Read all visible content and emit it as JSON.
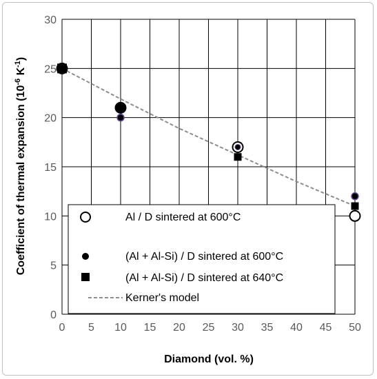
{
  "chart_data": {
    "type": "scatter",
    "xlabel": "Diamond (vol. %)",
    "ylabel": {
      "main": "Coefficient of thermal expansion (10",
      "sup1": "-6",
      "mid": " K",
      "sup2": "-1",
      "end": ")"
    },
    "xlim": [
      0,
      50
    ],
    "ylim": [
      0,
      30
    ],
    "xticks": [
      0,
      5,
      10,
      15,
      20,
      25,
      30,
      35,
      40,
      45,
      50
    ],
    "yticks": [
      0,
      5,
      10,
      15,
      20,
      25,
      30
    ],
    "grid": true,
    "legend_position": "bottom-center",
    "series": [
      {
        "name": "Al / D sintered at 600°C",
        "marker": "open-circle",
        "color": "#000000",
        "points": [
          {
            "x": 0,
            "y": 25
          },
          {
            "x": 10,
            "y": 21
          },
          {
            "x": 30,
            "y": 17
          },
          {
            "x": 50,
            "y": 10
          }
        ]
      },
      {
        "name": "(Al + Al-Si) / D sintered at 600°C",
        "marker": "filled-circle",
        "color": "#000000",
        "points": [
          {
            "x": 0,
            "y": 25
          },
          {
            "x": 10,
            "y": 20
          },
          {
            "x": 30,
            "y": 17
          },
          {
            "x": 50,
            "y": 12
          }
        ]
      },
      {
        "name": "(Al + Al-Si) / D sintered at 640°C",
        "marker": "filled-square",
        "color": "#000000",
        "points": [
          {
            "x": 0,
            "y": 25
          },
          {
            "x": 10,
            "y": 21
          },
          {
            "x": 30,
            "y": 16
          },
          {
            "x": 50,
            "y": 11
          }
        ]
      },
      {
        "name": "Kerner's model",
        "marker": "dashed-line",
        "color": "#8c8c8c",
        "points": [
          {
            "x": 0,
            "y": 25
          },
          {
            "x": 10,
            "y": 21.9
          },
          {
            "x": 20,
            "y": 18.9
          },
          {
            "x": 30,
            "y": 16.2
          },
          {
            "x": 40,
            "y": 13.5
          },
          {
            "x": 50,
            "y": 11
          }
        ]
      }
    ]
  }
}
